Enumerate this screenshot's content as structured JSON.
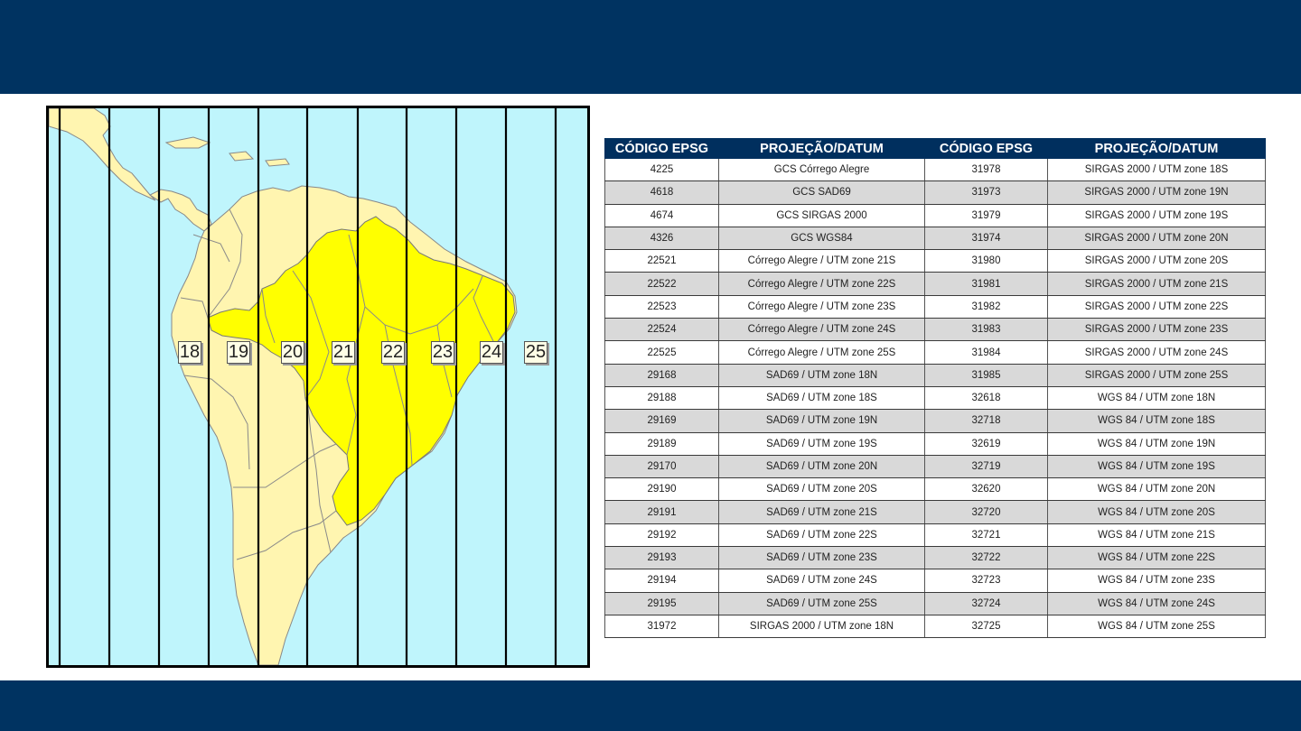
{
  "colors": {
    "banner": "#003361",
    "table_header": "#002f5e",
    "brazil": "#ffff00",
    "land": "#fff5b0",
    "ocean": "#bff5fc"
  },
  "map": {
    "zone_labels": [
      "18",
      "19",
      "20",
      "21",
      "22",
      "23",
      "24",
      "25"
    ]
  },
  "table": {
    "headers": [
      "CÓDIGO EPSG",
      "PROJEÇÃO/DATUM",
      "CÓDIGO EPSG",
      "PROJEÇÃO/DATUM"
    ],
    "rows": [
      [
        "4225",
        "GCS Córrego Alegre",
        "31978",
        "SIRGAS 2000 / UTM zone 18S"
      ],
      [
        "4618",
        "GCS SAD69",
        "31973",
        "SIRGAS 2000 / UTM zone 19N"
      ],
      [
        "4674",
        "GCS SIRGAS 2000",
        "31979",
        "SIRGAS 2000 / UTM zone 19S"
      ],
      [
        "4326",
        "GCS WGS84",
        "31974",
        "SIRGAS 2000 / UTM zone 20N"
      ],
      [
        "22521",
        "Córrego Alegre / UTM zone 21S",
        "31980",
        "SIRGAS 2000 / UTM zone 20S"
      ],
      [
        "22522",
        "Córrego Alegre / UTM zone 22S",
        "31981",
        "SIRGAS 2000 / UTM zone 21S"
      ],
      [
        "22523",
        "Córrego Alegre / UTM zone 23S",
        "31982",
        "SIRGAS 2000 / UTM zone 22S"
      ],
      [
        "22524",
        "Córrego Alegre / UTM zone 24S",
        "31983",
        "SIRGAS 2000 / UTM zone 23S"
      ],
      [
        "22525",
        "Córrego Alegre / UTM zone 25S",
        "31984",
        "SIRGAS 2000 / UTM zone 24S"
      ],
      [
        "29168",
        "SAD69 / UTM zone 18N",
        "31985",
        "SIRGAS 2000 / UTM zone 25S"
      ],
      [
        "29188",
        "SAD69 / UTM zone 18S",
        "32618",
        "WGS 84 / UTM zone 18N"
      ],
      [
        "29169",
        "SAD69 / UTM zone 19N",
        "32718",
        "WGS 84 / UTM zone 18S"
      ],
      [
        "29189",
        "SAD69 / UTM zone 19S",
        "32619",
        "WGS 84 / UTM zone 19N"
      ],
      [
        "29170",
        "SAD69 / UTM zone 20N",
        "32719",
        "WGS 84 / UTM zone 19S"
      ],
      [
        "29190",
        "SAD69 / UTM zone 20S",
        "32620",
        "WGS 84 / UTM zone 20N"
      ],
      [
        "29191",
        "SAD69 / UTM zone 21S",
        "32720",
        "WGS 84 / UTM zone 20S"
      ],
      [
        "29192",
        "SAD69 / UTM zone 22S",
        "32721",
        "WGS 84 / UTM zone 21S"
      ],
      [
        "29193",
        "SAD69 / UTM zone 23S",
        "32722",
        "WGS 84 / UTM zone 22S"
      ],
      [
        "29194",
        "SAD69 / UTM zone 24S",
        "32723",
        "WGS 84 / UTM zone 23S"
      ],
      [
        "29195",
        "SAD69 / UTM zone 25S",
        "32724",
        "WGS 84 / UTM zone 24S"
      ],
      [
        "31972",
        "SIRGAS 2000 / UTM zone 18N",
        "32725",
        "WGS 84 / UTM zone 25S"
      ]
    ]
  }
}
